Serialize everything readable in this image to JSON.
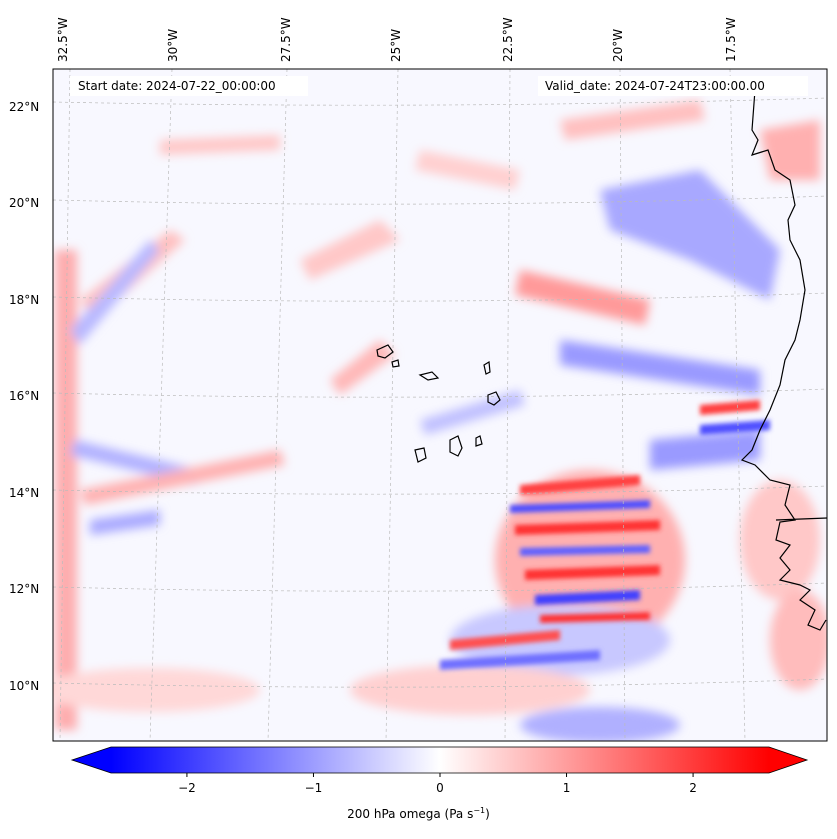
{
  "annotations": {
    "start_date": "Start date: 2024-07-22_00:00:00",
    "valid_date": "Valid_date: 2024-07-24T23:00:00.00"
  },
  "longitude_labels": [
    "32.5°W",
    "30°W",
    "27.5°W",
    "25°W",
    "22.5°W",
    "20°W",
    "17.5°W"
  ],
  "latitude_labels": [
    "22°N",
    "20°N",
    "18°N",
    "16°N",
    "14°N",
    "12°N",
    "10°N"
  ],
  "colorbar": {
    "tick_labels": [
      "−2",
      "−1",
      "0",
      "1",
      "2"
    ],
    "label_prefix": "200 hPa omega (Pa s",
    "label_exponent": "−1",
    "label_suffix": ")",
    "min": -2.6,
    "max": 2.6,
    "colormap": "bwr",
    "extend": "both"
  },
  "map": {
    "field": "200 hPa omega",
    "colors": {
      "negative": "#0000ff",
      "neutral": "#ffffff",
      "positive": "#ff0000",
      "coastline": "#000000",
      "gridline": "#bbbbbb"
    }
  }
}
